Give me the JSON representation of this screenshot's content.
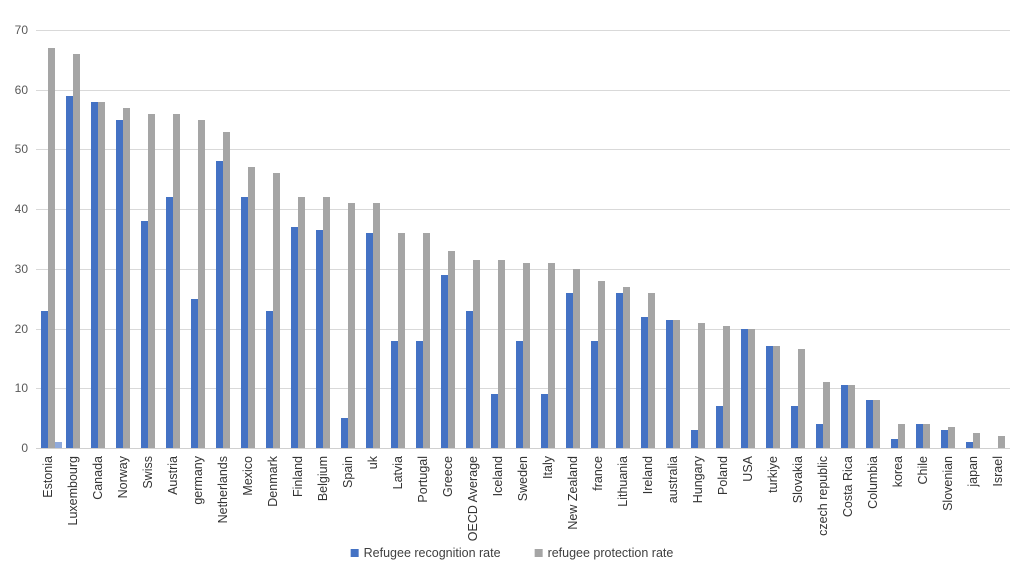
{
  "chart_data": {
    "type": "bar",
    "title": "",
    "categories": [
      "Estonia",
      "Luxembourg",
      "Canada",
      "Norway",
      "Swiss",
      "Austria",
      "germany",
      "Netherlands",
      "Mexico",
      "Denmark",
      "Finland",
      "Belgium",
      "Spain",
      "uk",
      "Latvia",
      "Portugal",
      "Greece",
      "OECD Average",
      "Iceland",
      "Sweden",
      "Italy",
      "New Zealand",
      "france",
      "Lithuania",
      "Ireland",
      "australia",
      "Hungary",
      "Poland",
      "USA",
      "turkiye",
      "Slovakia",
      "czech republic",
      "Costa Rica",
      "Columbia",
      "korea",
      "Chile",
      "Slovenian",
      "japan",
      "Israel"
    ],
    "series": [
      {
        "name": "Refugee recognition rate",
        "color": "#4472C4",
        "values": [
          23,
          59,
          58,
          55,
          38,
          42,
          25,
          48,
          42,
          23,
          37,
          36.5,
          5,
          36,
          18,
          18,
          29,
          23,
          9,
          18,
          9,
          26,
          18,
          26,
          22,
          21.5,
          3,
          7,
          20,
          17,
          7,
          4,
          10.5,
          8,
          1.5,
          4,
          3,
          1,
          0
        ]
      },
      {
        "name": "refugee protection rate",
        "color": "#A5A5A5",
        "values": [
          67,
          66,
          58,
          57,
          56,
          56,
          55,
          53,
          47,
          46,
          42,
          42,
          41,
          41,
          36,
          36,
          33,
          31.5,
          31.5,
          31,
          31,
          30,
          28,
          27,
          26,
          21.5,
          21,
          20.5,
          20,
          17,
          16.5,
          11,
          10.5,
          8,
          4,
          4,
          3.5,
          2.5,
          2
        ]
      }
    ],
    "extra_bar": {
      "category": "Estonia",
      "value": 1,
      "color": "#8FAADC"
    },
    "xlabel": "",
    "ylabel": "",
    "ylim": [
      0,
      70
    ],
    "yticks": [
      0,
      10,
      20,
      30,
      40,
      50,
      60,
      70
    ],
    "grid": true,
    "legend_position": "bottom"
  },
  "legend": {
    "items": [
      {
        "label": "Refugee recognition rate",
        "color": "#4472C4"
      },
      {
        "label": "refugee protection rate",
        "color": "#A5A5A5"
      }
    ]
  },
  "colors": {
    "recognition_blue": "#4472C4",
    "protection_gray": "#A5A5A5",
    "estonia_extra_light_blue": "#8FAADC",
    "gridline": "#d9d9d9",
    "y_tick_text": "#595959",
    "x_label_text": "#333333",
    "background": "#ffffff"
  }
}
